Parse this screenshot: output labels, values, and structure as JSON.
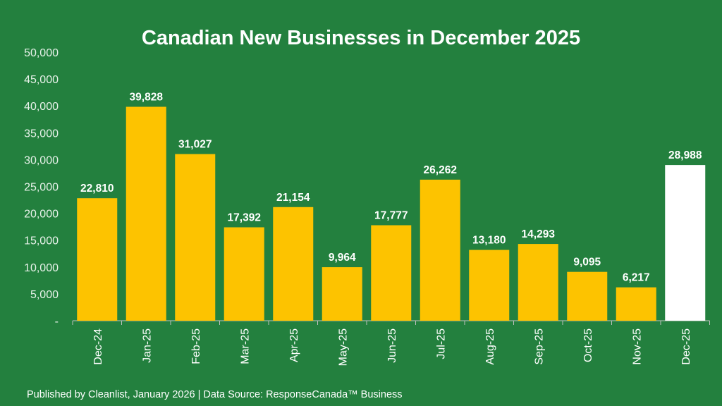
{
  "chart_data": {
    "type": "bar",
    "title": "Canadian New Businesses in December 2025",
    "categories": [
      "Dec-24",
      "Jan-25",
      "Feb-25",
      "Mar-25",
      "Apr-25",
      "May-25",
      "Jun-25",
      "Jul-25",
      "Aug-25",
      "Sep-25",
      "Oct-25",
      "Nov-25",
      "Dec-25"
    ],
    "values": [
      22810,
      39828,
      31027,
      17392,
      21154,
      9964,
      17777,
      26262,
      13180,
      14293,
      9095,
      6217,
      28988
    ],
    "data_labels": [
      "22,810",
      "39,828",
      "31,027",
      "17,392",
      "21,154",
      "9,964",
      "17,777",
      "26,262",
      "13,180",
      "14,293",
      "9,095",
      "6,217",
      "28,988"
    ],
    "ylim": [
      0,
      50000
    ],
    "yticks": [
      0,
      5000,
      10000,
      15000,
      20000,
      25000,
      30000,
      35000,
      40000,
      45000,
      50000
    ],
    "ytick_labels": [
      "-",
      "5,000",
      "10,000",
      "15,000",
      "20,000",
      "25,000",
      "30,000",
      "35,000",
      "40,000",
      "45,000",
      "50,000"
    ],
    "grid": false,
    "colors": {
      "background": "#23803e",
      "bar": "#fdc300",
      "highlight_bar": "#ffffff",
      "text": "#ffffff"
    },
    "highlight_index": 12
  },
  "footer": "Published by Cleanlist,  January 2026 | Data Source: ResponseCanada™ Business"
}
